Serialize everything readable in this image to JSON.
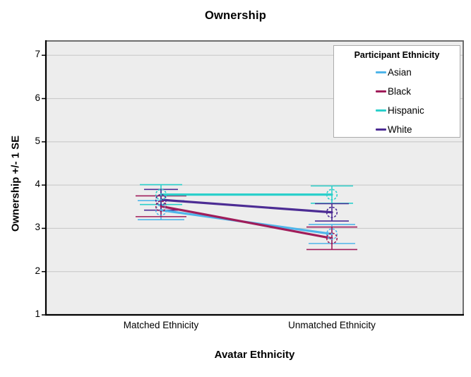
{
  "title": "Ownership",
  "axes": {
    "y_title": "Ownership +/- 1 SE",
    "x_title": "Avatar Ethnicity",
    "y_ticks": [
      1,
      2,
      3,
      4,
      5,
      6,
      7
    ],
    "x_categories": [
      "Matched Ethnicity",
      "Unmatched Ethnicity"
    ]
  },
  "legend": {
    "title": "Participant Ethnicity",
    "items": [
      {
        "label": "Asian",
        "color": "#4FB5EA"
      },
      {
        "label": "Black",
        "color": "#A01D5A"
      },
      {
        "label": "Hispanic",
        "color": "#2CD0CB"
      },
      {
        "label": "White",
        "color": "#4C2C94"
      }
    ]
  },
  "colors": {
    "plot_background": "#EDEDED",
    "gridline": "#C6C6C6",
    "frame": "#5f5f5f",
    "axis": "#000000"
  },
  "chart_data": {
    "type": "line",
    "title": "Ownership",
    "xlabel": "Avatar Ethnicity",
    "ylabel": "Ownership +/- 1 SE",
    "ylim": [
      1,
      7
    ],
    "yticks": [
      1,
      2,
      3,
      4,
      5,
      6,
      7
    ],
    "grid": "horizontal",
    "legend_title": "Participant Ethnicity",
    "legend_position": "top-right-inside",
    "markers": "open-circle",
    "error_bars": "+/- 1 SE",
    "categories": [
      "Matched Ethnicity",
      "Unmatched Ethnicity"
    ],
    "series": [
      {
        "name": "Asian",
        "color": "#4FB5EA",
        "means": [
          3.42,
          2.87
        ],
        "se": [
          0.22,
          0.22
        ]
      },
      {
        "name": "Black",
        "color": "#A01D5A",
        "means": [
          3.51,
          2.77
        ],
        "se": [
          0.24,
          0.26
        ]
      },
      {
        "name": "Hispanic",
        "color": "#2CD0CB",
        "means": [
          3.78,
          3.78
        ],
        "se": [
          0.23,
          0.2
        ]
      },
      {
        "name": "White",
        "color": "#4C2C94",
        "means": [
          3.66,
          3.37
        ],
        "se": [
          0.24,
          0.2
        ]
      }
    ]
  }
}
